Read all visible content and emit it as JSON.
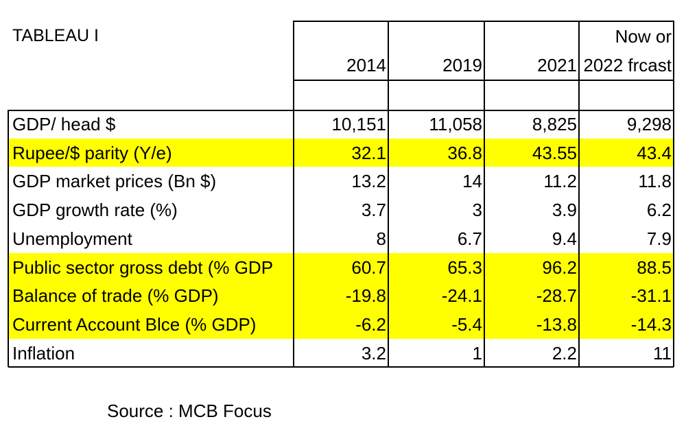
{
  "chart_data": {
    "type": "table",
    "title": "TABLEAU I",
    "columns": [
      "2014",
      "2019",
      "2021",
      "Now or 2022 frcast"
    ],
    "column_header_lines": [
      [
        "",
        "2014"
      ],
      [
        "",
        "2019"
      ],
      [
        "",
        "2021"
      ],
      [
        "Now or",
        "2022 frcast"
      ]
    ],
    "rows": [
      {
        "label": "GDP/ head  $",
        "values": [
          "10,151",
          "11,058",
          "8,825",
          "9,298"
        ],
        "highlight": false
      },
      {
        "label": "Rupee/$ parity (Y/e)",
        "values": [
          "32.1",
          "36.8",
          "43.55",
          "43.4"
        ],
        "highlight": true
      },
      {
        "label": "GDP market prices (Bn $)",
        "values": [
          "13.2",
          "14",
          "11.2",
          "11.8"
        ],
        "highlight": false
      },
      {
        "label": "GDP growth rate (%)",
        "values": [
          "3.7",
          "3",
          "3.9",
          "6.2"
        ],
        "highlight": false
      },
      {
        "label": "Unemployment",
        "values": [
          "8",
          "6.7",
          "9.4",
          "7.9"
        ],
        "highlight": false
      },
      {
        "label": "Public sector gross debt (% GDP",
        "values": [
          "60.7",
          "65.3",
          "96.2",
          "88.5"
        ],
        "highlight": true
      },
      {
        "label": "Balance of trade (% GDP)",
        "values": [
          "-19.8",
          "-24.1",
          "-28.7",
          "-31.1"
        ],
        "highlight": true
      },
      {
        "label": "Current Account Blce (% GDP)",
        "values": [
          "-6.2",
          "-5.4",
          "-13.8",
          "-14.3"
        ],
        "highlight": true
      },
      {
        "label": "Inflation",
        "values": [
          "3.2",
          "1",
          "2.2",
          "11"
        ],
        "highlight": false
      }
    ],
    "highlight_color": "#ffff00",
    "source": "Source : MCB Focus"
  }
}
